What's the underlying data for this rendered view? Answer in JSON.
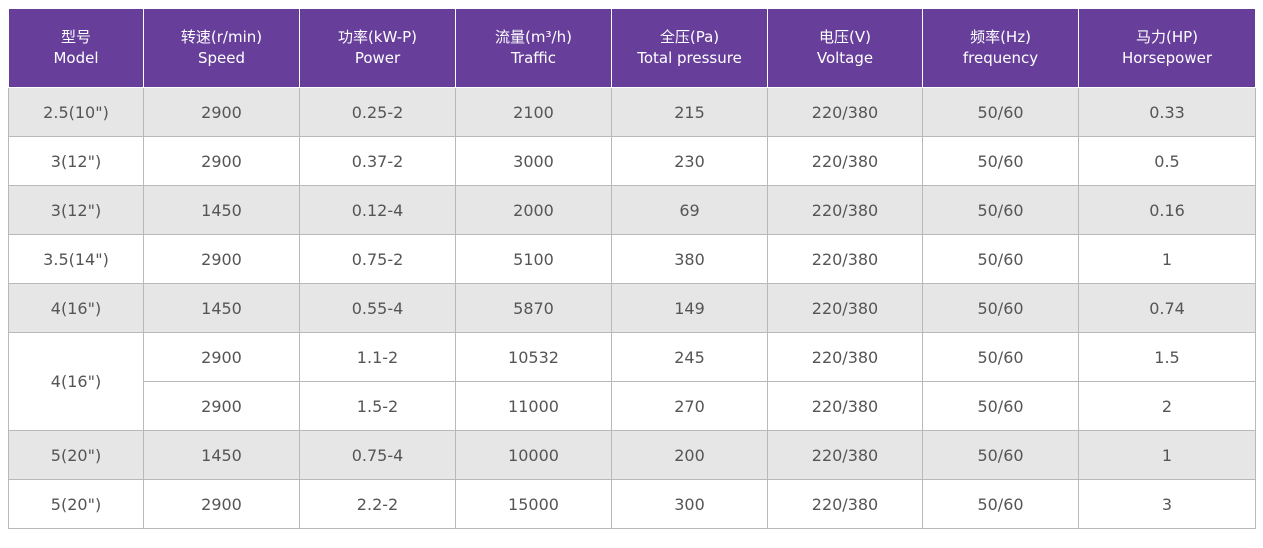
{
  "table": {
    "headers": [
      {
        "zh": "型号",
        "en": "Model"
      },
      {
        "zh": "转速(r/min)",
        "en": "Speed"
      },
      {
        "zh": "功率(kW-P)",
        "en": "Power"
      },
      {
        "zh": "流量(m³/h)",
        "en": "Traffic"
      },
      {
        "zh": "全压(Pa)",
        "en": "Total pressure"
      },
      {
        "zh": "电压(V)",
        "en": "Voltage"
      },
      {
        "zh": "频率(Hz)",
        "en": "frequency"
      },
      {
        "zh": "马力(HP)",
        "en": "Horsepower"
      }
    ],
    "rows": [
      {
        "model": "2.5(10\")",
        "speed": "2900",
        "power": "0.25-2",
        "traffic": "2100",
        "pressure": "215",
        "voltage": "220/380",
        "frequency": "50/60",
        "horsepower": "0.33"
      },
      {
        "model": "3(12\")",
        "speed": "2900",
        "power": "0.37-2",
        "traffic": "3000",
        "pressure": "230",
        "voltage": "220/380",
        "frequency": "50/60",
        "horsepower": "0.5"
      },
      {
        "model": "3(12\")",
        "speed": "1450",
        "power": "0.12-4",
        "traffic": "2000",
        "pressure": "69",
        "voltage": "220/380",
        "frequency": "50/60",
        "horsepower": "0.16"
      },
      {
        "model": "3.5(14\")",
        "speed": "2900",
        "power": "0.75-2",
        "traffic": "5100",
        "pressure": "380",
        "voltage": "220/380",
        "frequency": "50/60",
        "horsepower": "1"
      },
      {
        "model": "4(16\")",
        "speed": "1450",
        "power": "0.55-4",
        "traffic": "5870",
        "pressure": "149",
        "voltage": "220/380",
        "frequency": "50/60",
        "horsepower": "0.74"
      },
      {
        "model": "4(16\")",
        "speed": "2900",
        "power": "1.1-2",
        "traffic": "10532",
        "pressure": "245",
        "voltage": "220/380",
        "frequency": "50/60",
        "horsepower": "1.5"
      },
      {
        "model": "",
        "speed": "2900",
        "power": "1.5-2",
        "traffic": "11000",
        "pressure": "270",
        "voltage": "220/380",
        "frequency": "50/60",
        "horsepower": "2"
      },
      {
        "model": "5(20\")",
        "speed": "1450",
        "power": "0.75-4",
        "traffic": "10000",
        "pressure": "200",
        "voltage": "220/380",
        "frequency": "50/60",
        "horsepower": "1"
      },
      {
        "model": "5(20\")",
        "speed": "2900",
        "power": "2.2-2",
        "traffic": "15000",
        "pressure": "300",
        "voltage": "220/380",
        "frequency": "50/60",
        "horsepower": "3"
      }
    ]
  }
}
